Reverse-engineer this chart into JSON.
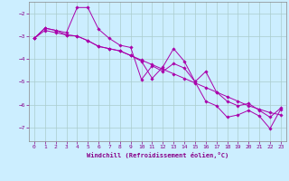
{
  "xlabel": "Windchill (Refroidissement éolien,°C)",
  "background_color": "#cceeff",
  "grid_color": "#aacccc",
  "line_color": "#aa00aa",
  "xlim": [
    -0.5,
    23.5
  ],
  "ylim": [
    -7.6,
    -1.5
  ],
  "yticks": [
    -7,
    -6,
    -5,
    -4,
    -3,
    -2
  ],
  "xticks": [
    0,
    1,
    2,
    3,
    4,
    5,
    6,
    7,
    8,
    9,
    10,
    11,
    12,
    13,
    14,
    15,
    16,
    17,
    18,
    19,
    20,
    21,
    22,
    23
  ],
  "series1_x": [
    0,
    1,
    2,
    3,
    4,
    5,
    6,
    7,
    8,
    9,
    10,
    11,
    12,
    13,
    14,
    15,
    16,
    17,
    18,
    19,
    20,
    21,
    22,
    23
  ],
  "series1_y": [
    -3.1,
    -2.75,
    -2.85,
    -2.95,
    -3.0,
    -3.2,
    -3.45,
    -3.55,
    -3.65,
    -3.85,
    -4.05,
    -4.25,
    -4.45,
    -4.65,
    -4.85,
    -5.05,
    -5.25,
    -5.45,
    -5.65,
    -5.85,
    -6.05,
    -6.2,
    -6.35,
    -6.45
  ],
  "series2_x": [
    0,
    1,
    2,
    3,
    4,
    5,
    6,
    7,
    8,
    9,
    10,
    11,
    12,
    13,
    14,
    15,
    16,
    17,
    18,
    19,
    20,
    21,
    22,
    23
  ],
  "series2_y": [
    -3.1,
    -2.65,
    -2.75,
    -2.85,
    -1.75,
    -1.75,
    -2.7,
    -3.1,
    -3.4,
    -3.5,
    -4.9,
    -4.3,
    -4.55,
    -4.2,
    -4.4,
    -5.0,
    -4.55,
    -5.45,
    -5.85,
    -6.05,
    -5.95,
    -6.25,
    -6.55,
    -6.15
  ],
  "series3_x": [
    0,
    1,
    2,
    3,
    4,
    5,
    6,
    7,
    8,
    9,
    10,
    11,
    12,
    13,
    14,
    15,
    16,
    17,
    18,
    19,
    20,
    21,
    22,
    23
  ],
  "series3_y": [
    -3.1,
    -2.65,
    -2.75,
    -2.95,
    -3.0,
    -3.2,
    -3.45,
    -3.55,
    -3.65,
    -3.85,
    -4.1,
    -4.85,
    -4.35,
    -3.55,
    -4.1,
    -5.0,
    -5.85,
    -6.05,
    -6.55,
    -6.45,
    -6.25,
    -6.5,
    -7.05,
    -6.2
  ]
}
